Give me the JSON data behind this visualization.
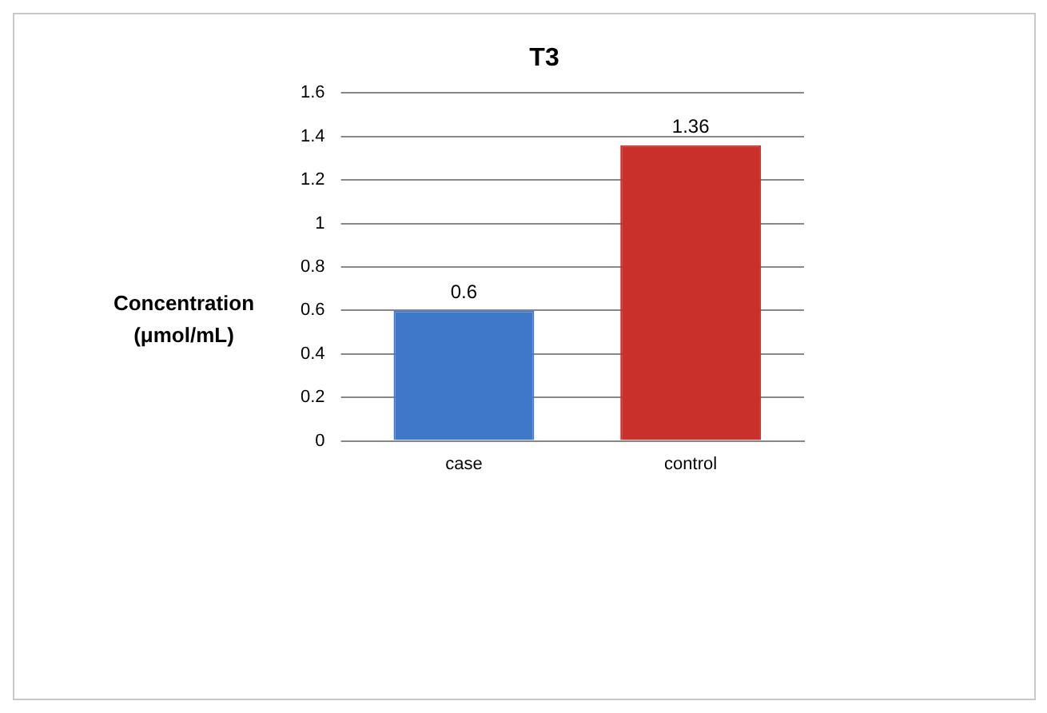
{
  "chart_data": {
    "type": "bar",
    "title": "T3",
    "ylabel": "Concentration (μmol/mL)",
    "categories": [
      "case",
      "control"
    ],
    "values": [
      0.6,
      1.36
    ],
    "colors": [
      "#3f78c8",
      "#c9302c"
    ],
    "ylim": [
      0,
      1.6
    ],
    "yticks": [
      0,
      0.2,
      0.4,
      0.6,
      0.8,
      1,
      1.2,
      1.4,
      1.6
    ],
    "grid": "y",
    "data_labels": true,
    "legend": false
  }
}
